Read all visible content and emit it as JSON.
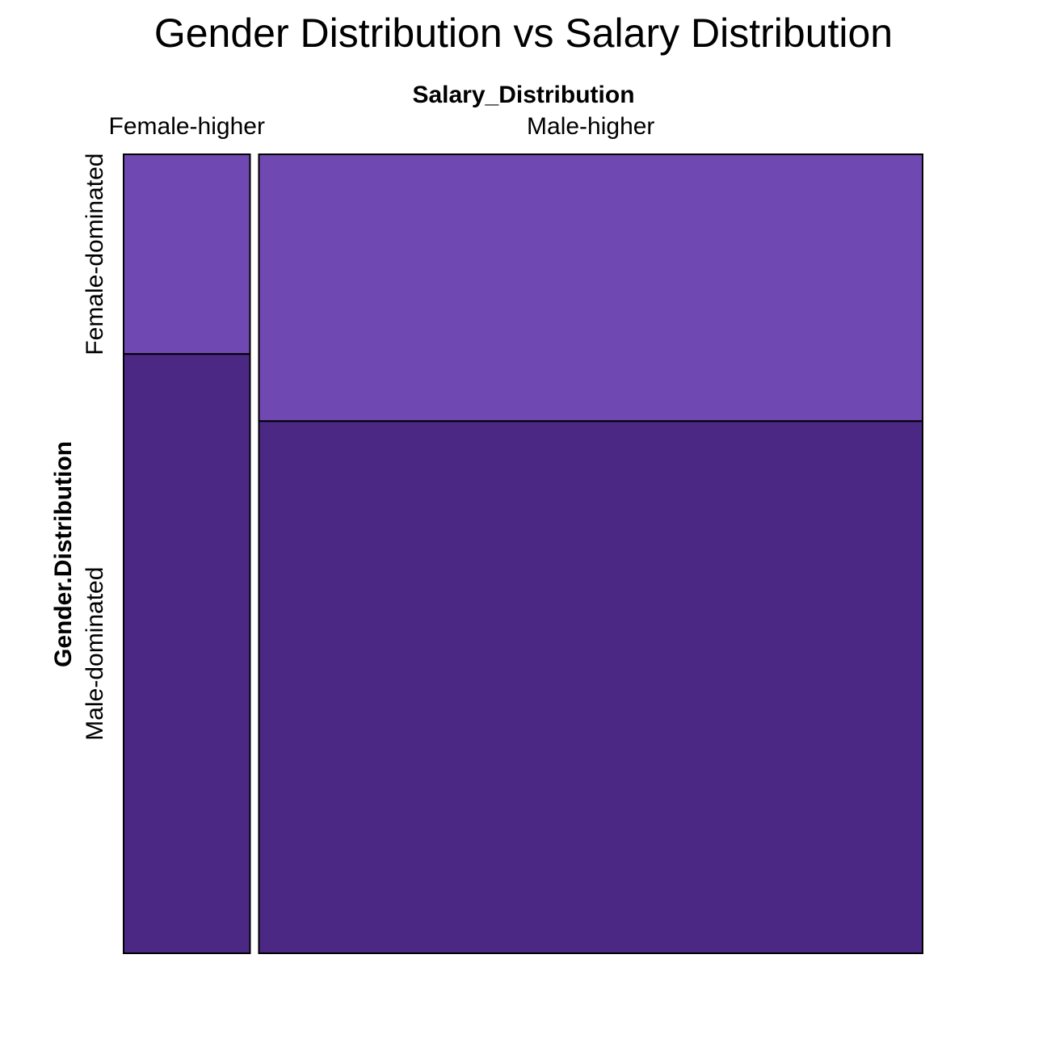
{
  "chart_data": {
    "type": "mosaic",
    "title": "Gender Distribution vs Salary Distribution",
    "x_variable": "Salary_Distribution",
    "y_variable": "Gender.Distribution",
    "x_levels": [
      "Female-higher",
      "Male-higher"
    ],
    "y_levels": [
      "Female-dominated",
      "Male-dominated"
    ],
    "x_proportions": [
      0.16,
      0.84
    ],
    "cells": [
      {
        "x": "Female-higher",
        "y": "Female-dominated",
        "proportion_within_x": 0.25
      },
      {
        "x": "Female-higher",
        "y": "Male-dominated",
        "proportion_within_x": 0.75
      },
      {
        "x": "Male-higher",
        "y": "Female-dominated",
        "proportion_within_x": 0.334
      },
      {
        "x": "Male-higher",
        "y": "Male-dominated",
        "proportion_within_x": 0.666
      }
    ],
    "colors": {
      "Female-dominated": "#7048B1",
      "Male-dominated": "#4B2884"
    }
  }
}
